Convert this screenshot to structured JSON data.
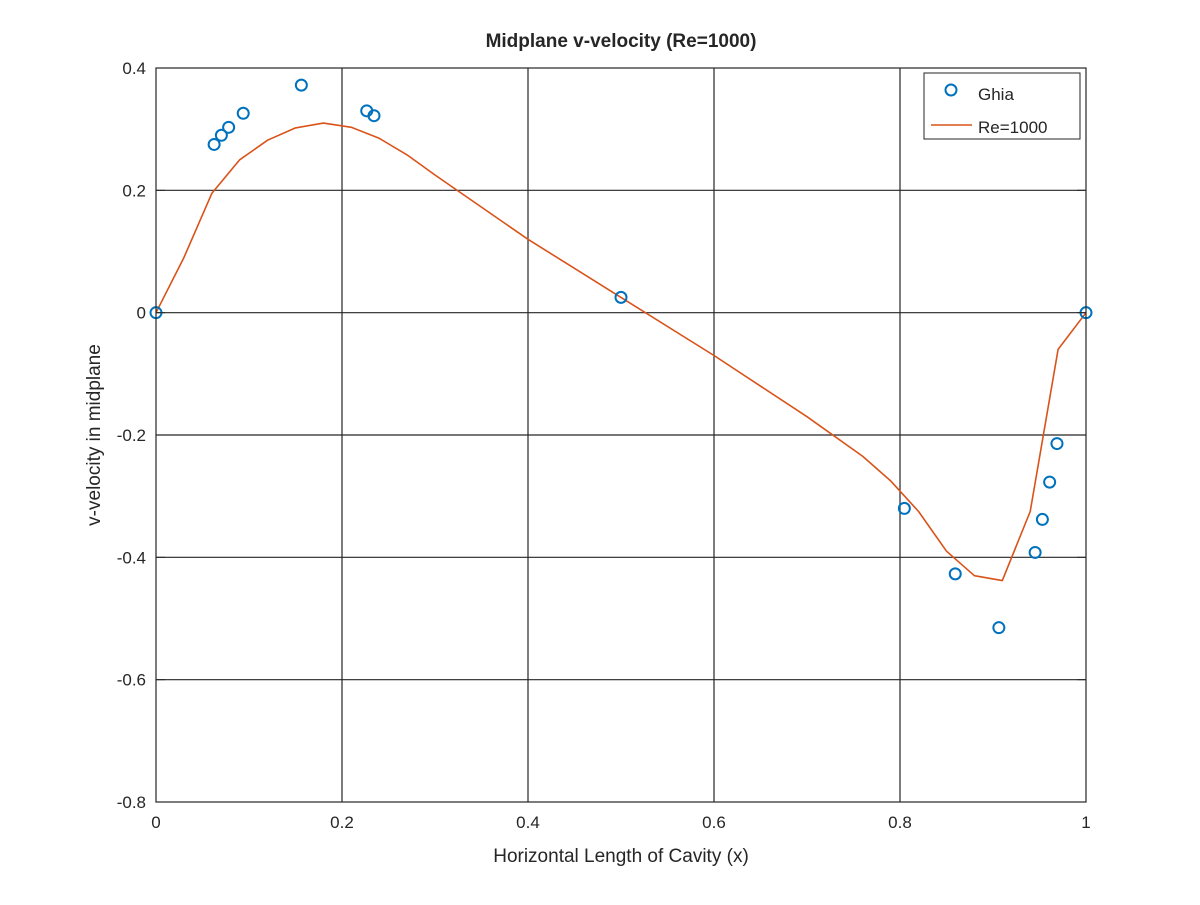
{
  "colors": {
    "background": "#ffffff",
    "axes": "#262626",
    "grid": "#262626",
    "ghia_marker": "#0072BD",
    "re1000_line": "#D95319"
  },
  "chart_data": {
    "type": "line",
    "title": "Midplane v-velocity (Re=1000)",
    "xlabel": "Horizontal Length of Cavity (x)",
    "ylabel": "v-velocity in midplane",
    "xlim": [
      0,
      1
    ],
    "ylim": [
      -0.8,
      0.4
    ],
    "xticks": [
      0,
      0.2,
      0.4,
      0.6,
      0.8,
      1
    ],
    "xtick_labels": [
      "0",
      "0.2",
      "0.4",
      "0.6",
      "0.8",
      "1"
    ],
    "yticks": [
      -0.8,
      -0.6,
      -0.4,
      -0.2,
      0,
      0.2,
      0.4
    ],
    "ytick_labels": [
      "-0.8",
      "-0.6",
      "-0.4",
      "-0.2",
      "0",
      "0.2",
      "0.4"
    ],
    "grid": true,
    "legend_position": "top-right",
    "series": [
      {
        "name": "Ghia",
        "style": "markers",
        "marker": "circle",
        "x": [
          0,
          0.0625,
          0.0703,
          0.0781,
          0.0938,
          0.1563,
          0.2266,
          0.2344,
          0.5,
          0.8047,
          0.8594,
          0.9063,
          0.9453,
          0.9531,
          0.9609,
          0.9688,
          1.0
        ],
        "y": [
          0,
          0.275,
          0.29,
          0.303,
          0.326,
          0.372,
          0.33,
          0.322,
          0.025,
          -0.32,
          -0.427,
          -0.515,
          -0.392,
          -0.338,
          -0.277,
          -0.214,
          0
        ]
      },
      {
        "name": "Re=1000",
        "style": "line",
        "x": [
          0,
          0.03,
          0.06,
          0.09,
          0.12,
          0.15,
          0.18,
          0.21,
          0.24,
          0.27,
          0.3,
          0.4,
          0.5,
          0.6,
          0.7,
          0.76,
          0.79,
          0.82,
          0.85,
          0.88,
          0.91,
          0.94,
          0.97,
          1.0
        ],
        "y": [
          0,
          0.09,
          0.195,
          0.25,
          0.282,
          0.302,
          0.31,
          0.303,
          0.285,
          0.258,
          0.225,
          0.12,
          0.025,
          -0.07,
          -0.17,
          -0.235,
          -0.275,
          -0.325,
          -0.39,
          -0.43,
          -0.438,
          -0.325,
          -0.06,
          0
        ]
      }
    ]
  }
}
